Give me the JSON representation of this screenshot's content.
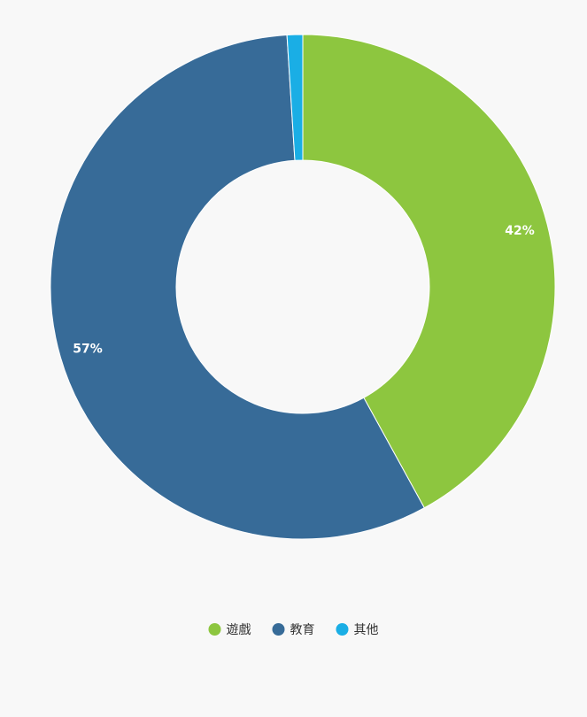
{
  "chart_data": {
    "type": "donut",
    "categories": [
      "遊戲",
      "教育",
      "其他"
    ],
    "values": [
      42,
      57,
      1
    ],
    "value_labels": [
      "42%",
      "57%",
      null
    ],
    "colors": [
      "#8dc63f",
      "#376b98",
      "#1aaee5"
    ],
    "legend": "bottom"
  }
}
